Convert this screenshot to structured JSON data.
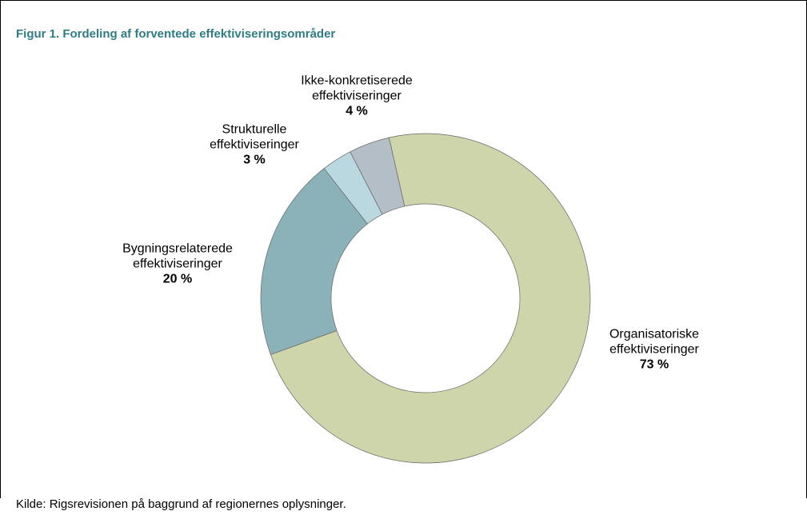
{
  "chart_data": {
    "type": "donut",
    "title": "Figur 1. Fordeling af forventede effektiviseringsområder",
    "categories": [
      "Organisatoriske effektiviseringer",
      "Bygningsrelaterede effektiviseringer",
      "Strukturelle effektiviseringer",
      "Ikke-konkretiserede effektiviseringer"
    ],
    "values": [
      73,
      20,
      3,
      4
    ],
    "value_labels": [
      "73 %",
      "20 %",
      "3 %",
      "4 %"
    ],
    "colors": [
      "#cfd5ab",
      "#8bb2b8",
      "#bad8e0",
      "#b3bec6"
    ],
    "source": "Kilde:  Rigsrevisionen på baggrund af regionernes oplysninger."
  }
}
